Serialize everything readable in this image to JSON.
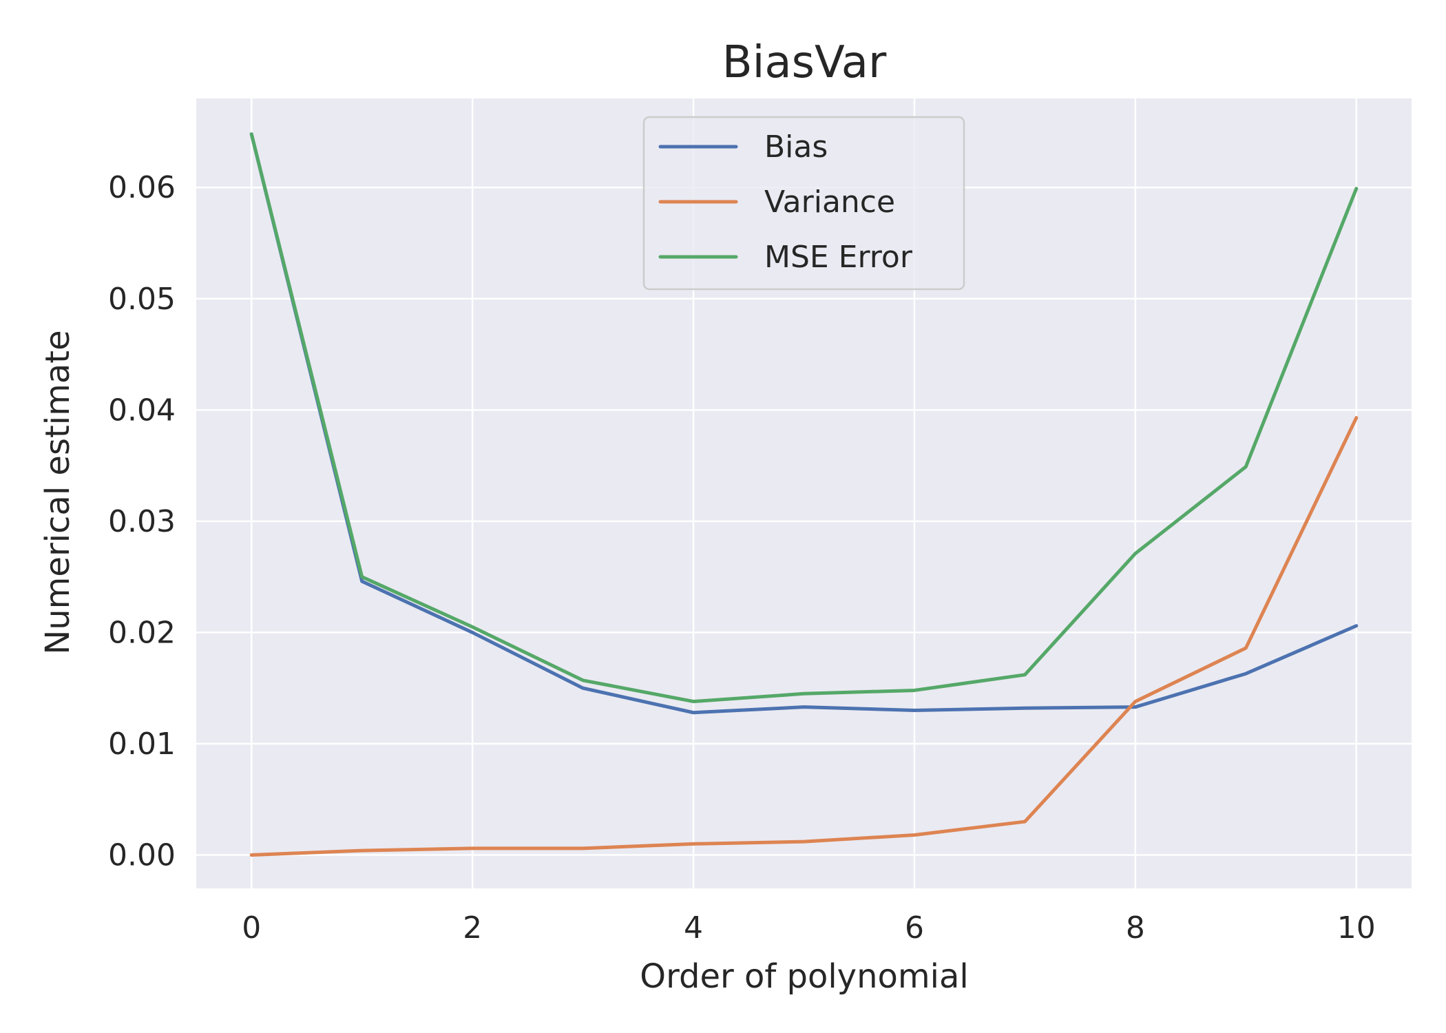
{
  "chart_data": {
    "type": "line",
    "title": "BiasVar",
    "xlabel": "Order of polynomial",
    "ylabel": "Numerical estimate",
    "x": [
      0,
      1,
      2,
      3,
      4,
      5,
      6,
      7,
      8,
      9,
      10
    ],
    "xlim": [
      -0.5,
      10.5
    ],
    "ylim": [
      -0.003,
      0.068
    ],
    "xticks": [
      0,
      2,
      4,
      6,
      8,
      10
    ],
    "xtick_labels": [
      "0",
      "2",
      "4",
      "6",
      "8",
      "10"
    ],
    "yticks": [
      0.0,
      0.01,
      0.02,
      0.03,
      0.04,
      0.05,
      0.06
    ],
    "ytick_labels": [
      "0.00",
      "0.01",
      "0.02",
      "0.03",
      "0.04",
      "0.05",
      "0.06"
    ],
    "grid": true,
    "legend_position": "upper center",
    "series": [
      {
        "name": "Bias",
        "color": "#4c72b0",
        "values": [
          0.0648,
          0.0246,
          0.02,
          0.015,
          0.0128,
          0.0133,
          0.013,
          0.0132,
          0.0133,
          0.0163,
          0.0206
        ]
      },
      {
        "name": "Variance",
        "color": "#dd8452",
        "values": [
          0.0,
          0.0004,
          0.0006,
          0.0006,
          0.001,
          0.0012,
          0.0018,
          0.003,
          0.0138,
          0.0186,
          0.0393
        ]
      },
      {
        "name": "MSE Error",
        "color": "#55a868",
        "values": [
          0.0648,
          0.025,
          0.0205,
          0.0157,
          0.0138,
          0.0145,
          0.0148,
          0.0162,
          0.0271,
          0.0349,
          0.0599
        ]
      }
    ],
    "colors": {
      "plot_background": "#eaeaf2",
      "grid": "#ffffff",
      "text": "#262626"
    }
  }
}
